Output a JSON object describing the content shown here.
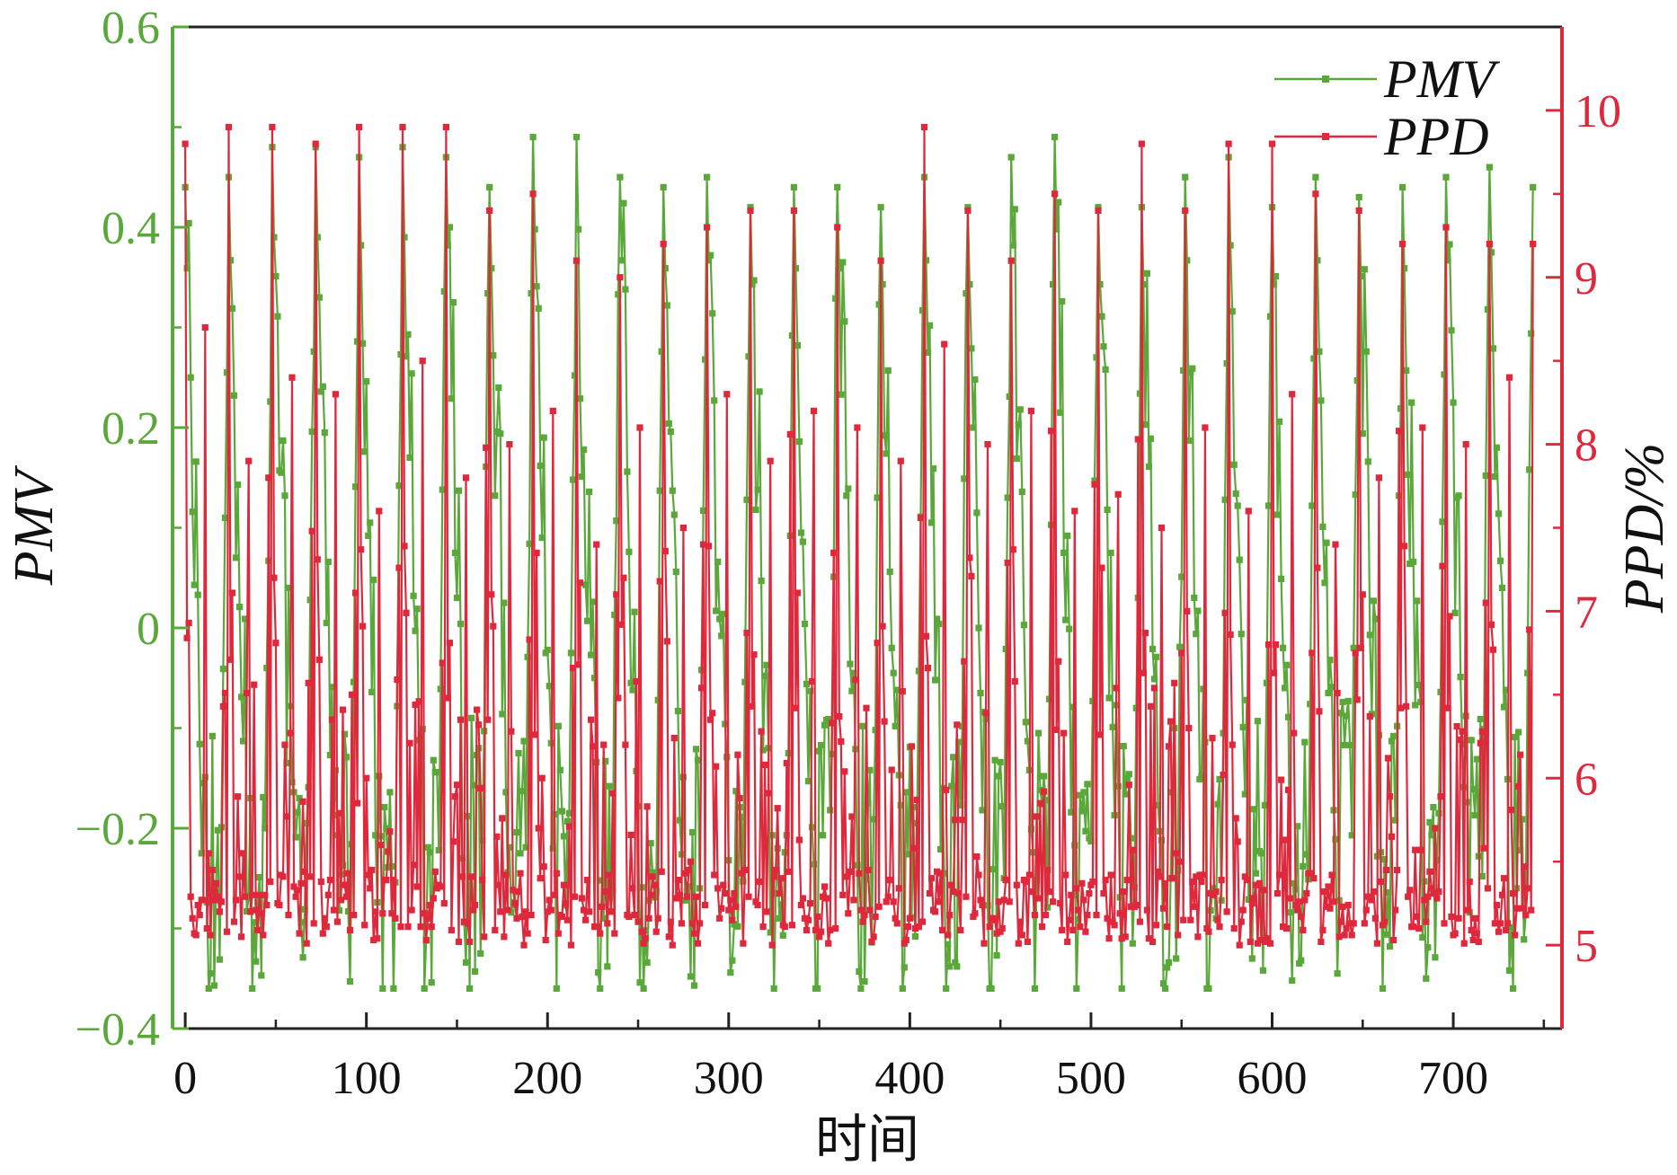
{
  "chart_data": {
    "type": "line",
    "xlabel": "时间",
    "ylabel_left": "PMV",
    "ylabel_right": "PPD/%",
    "xlim": [
      -7,
      760
    ],
    "ylim_left": [
      -0.4,
      0.6
    ],
    "ylim_right": [
      4.5,
      10.5
    ],
    "x_ticks": [
      0,
      100,
      200,
      300,
      400,
      500,
      600,
      700
    ],
    "y_left_ticks": [
      -0.4,
      -0.2,
      0,
      0.2,
      0.4,
      0.6
    ],
    "y_left_tick_labels": [
      "−0.4",
      "−0.2",
      "0",
      "0.2",
      "0.4",
      "0.6"
    ],
    "y_right_ticks": [
      5,
      6,
      7,
      8,
      9,
      10
    ],
    "grid": false,
    "legend_position": "top-right",
    "x_range_points": [
      0,
      744
    ],
    "series": [
      {
        "name": "PMV",
        "axis": "left",
        "color": "#5aa83a",
        "marker": "square",
        "period": 24,
        "x_start": 0,
        "x_end": 744,
        "daily_peaks": [
          0.44,
          0.45,
          0.48,
          0.48,
          0.47,
          0.48,
          0.47,
          0.44,
          0.49,
          0.49,
          0.45,
          0.44,
          0.45,
          0.42,
          0.44,
          0.44,
          0.42,
          0.45,
          0.42,
          0.47,
          0.49,
          0.42,
          0.42,
          0.45,
          0.47,
          0.42,
          0.45,
          0.43,
          0.44,
          0.45,
          0.46,
          0.44
        ],
        "daily_troughs": [
          -0.38,
          -0.36,
          -0.33,
          -0.36,
          -0.38,
          -0.36,
          -0.37,
          -0.34,
          -0.37,
          -0.36,
          -0.37,
          -0.38,
          -0.35,
          -0.36,
          -0.37,
          -0.36,
          -0.34,
          -0.37,
          -0.38,
          -0.36,
          -0.37,
          -0.38,
          -0.35,
          -0.36,
          -0.36,
          -0.38,
          -0.35,
          -0.36,
          -0.37,
          -0.34,
          -0.38,
          -0.36
        ]
      },
      {
        "name": "PPD",
        "axis": "right",
        "color": "#e0283c",
        "marker": "square",
        "period": 24,
        "x_start": 0,
        "x_end": 744,
        "baseline": 5.0,
        "daily_peaks": [
          9.8,
          9.9,
          9.9,
          9.8,
          9.9,
          9.9,
          9.9,
          9.4,
          9.5,
          9.1,
          9.0,
          9.2,
          9.3,
          9.4,
          9.4,
          9.3,
          9.1,
          9.9,
          9.4,
          9.1,
          9.5,
          9.4,
          9.8,
          9.4,
          9.8,
          9.8,
          9.5,
          9.4,
          9.2,
          9.3,
          9.2,
          9.2
        ],
        "secondary_peaks": [
          8.7,
          7.9,
          8.4,
          8.3,
          7.6,
          8.5,
          7.8,
          8.0,
          8.2,
          7.4,
          8.1,
          7.5,
          8.3,
          7.9,
          8.2,
          8.1,
          7.9,
          8.6,
          8.0,
          8.2,
          7.6,
          7.7,
          7.5,
          8.1,
          7.6,
          8.3,
          7.4,
          7.8,
          8.1,
          8.0,
          8.4,
          8.3
        ]
      }
    ]
  },
  "colors": {
    "pmv": "#5aa83a",
    "ppd": "#e0283c",
    "left_axis": "#5aa83a",
    "right_axis": "#e0283c",
    "frame": "#222222"
  }
}
